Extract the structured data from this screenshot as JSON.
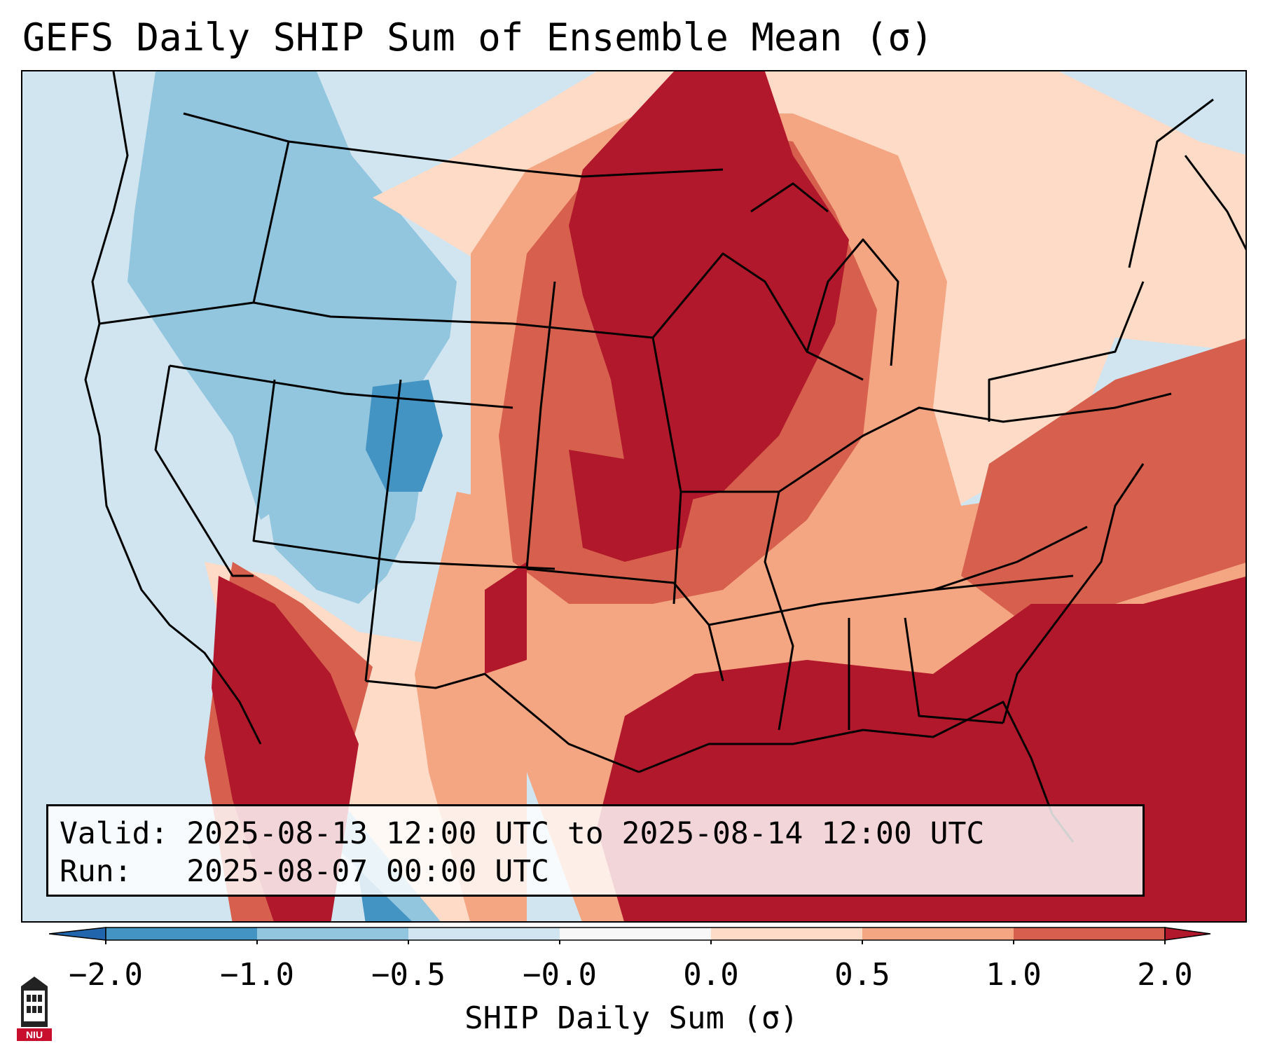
{
  "title": "GEFS Daily SHIP Sum of Ensemble Mean (σ)",
  "info": {
    "valid_label": "Valid:",
    "valid_text": "2025-08-13 12:00 UTC to 2025-08-14 12:00 UTC",
    "run_label": "Run:",
    "run_text": "2025-08-07 00:00 UTC"
  },
  "colorbar": {
    "label": "SHIP Daily Sum (σ)",
    "ticks": [
      "−2.0",
      "−1.0",
      "−0.5",
      "−0.0",
      "0.0",
      "0.5",
      "1.0",
      "2.0"
    ],
    "colors": [
      "#2166ac",
      "#4393c3",
      "#92c5de",
      "#d1e5f0",
      "#f7f7f7",
      "#fddbc7",
      "#f4a582",
      "#d6604d",
      "#b2182b"
    ],
    "extend": "both"
  },
  "logo": {
    "text": "NIU",
    "icon": "university-tower-icon"
  },
  "map": {
    "region": "Contiguous United States",
    "field_colors": {
      "deep_neg": "#4393c3",
      "neg": "#92c5de",
      "light_neg": "#d1e5f0",
      "light_pos": "#fddbc7",
      "pos": "#f4a582",
      "mid_pos": "#d6604d",
      "high_pos": "#b2182b"
    }
  }
}
